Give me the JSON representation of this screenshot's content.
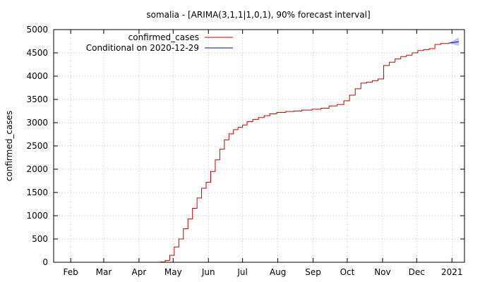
{
  "chart_data": {
    "type": "line",
    "title": "somalia -  [ARIMA(3,1,1|1,0,1), 90% forecast interval]",
    "xlabel": "",
    "ylabel": "confirmed_cases",
    "xlim": [
      "2020-01-17",
      "2021-01-12"
    ],
    "ylim": [
      0,
      5000
    ],
    "y_ticks": [
      0,
      500,
      1000,
      1500,
      2000,
      2500,
      3000,
      3500,
      4000,
      4500,
      5000
    ],
    "x_ticks": [
      {
        "label": "Feb",
        "date": "2020-02-01"
      },
      {
        "label": "Mar",
        "date": "2020-03-01"
      },
      {
        "label": "Apr",
        "date": "2020-04-01"
      },
      {
        "label": "May",
        "date": "2020-05-01"
      },
      {
        "label": "Jun",
        "date": "2020-06-01"
      },
      {
        "label": "Jul",
        "date": "2020-07-01"
      },
      {
        "label": "Aug",
        "date": "2020-08-01"
      },
      {
        "label": "Sep",
        "date": "2020-09-01"
      },
      {
        "label": "Oct",
        "date": "2020-10-01"
      },
      {
        "label": "Nov",
        "date": "2020-11-01"
      },
      {
        "label": "Dec",
        "date": "2020-12-01"
      },
      {
        "label": "2021",
        "date": "2021-01-01"
      }
    ],
    "grid": true,
    "legend_position": "top-left",
    "series": [
      {
        "name": "confirmed_cases",
        "color": "#cc0000",
        "points": [
          [
            "2020-04-16",
            0
          ],
          [
            "2020-04-20",
            5
          ],
          [
            "2020-04-24",
            40
          ],
          [
            "2020-04-28",
            150
          ],
          [
            "2020-05-02",
            330
          ],
          [
            "2020-05-06",
            500
          ],
          [
            "2020-05-10",
            720
          ],
          [
            "2020-05-14",
            930
          ],
          [
            "2020-05-18",
            1160
          ],
          [
            "2020-05-22",
            1380
          ],
          [
            "2020-05-26",
            1590
          ],
          [
            "2020-05-30",
            1720
          ],
          [
            "2020-06-03",
            1950
          ],
          [
            "2020-06-07",
            2200
          ],
          [
            "2020-06-11",
            2430
          ],
          [
            "2020-06-15",
            2630
          ],
          [
            "2020-06-19",
            2760
          ],
          [
            "2020-06-23",
            2850
          ],
          [
            "2020-06-27",
            2900
          ],
          [
            "2020-07-01",
            2950
          ],
          [
            "2020-07-05",
            3020
          ],
          [
            "2020-07-10",
            3070
          ],
          [
            "2020-07-15",
            3110
          ],
          [
            "2020-07-20",
            3150
          ],
          [
            "2020-07-25",
            3190
          ],
          [
            "2020-07-31",
            3220
          ],
          [
            "2020-08-08",
            3240
          ],
          [
            "2020-08-15",
            3250
          ],
          [
            "2020-08-22",
            3270
          ],
          [
            "2020-08-31",
            3290
          ],
          [
            "2020-09-08",
            3310
          ],
          [
            "2020-09-15",
            3360
          ],
          [
            "2020-09-22",
            3390
          ],
          [
            "2020-09-28",
            3470
          ],
          [
            "2020-10-03",
            3590
          ],
          [
            "2020-10-08",
            3730
          ],
          [
            "2020-10-13",
            3850
          ],
          [
            "2020-10-18",
            3870
          ],
          [
            "2020-10-23",
            3900
          ],
          [
            "2020-10-28",
            3940
          ],
          [
            "2020-11-02",
            4230
          ],
          [
            "2020-11-07",
            4300
          ],
          [
            "2020-11-12",
            4370
          ],
          [
            "2020-11-17",
            4420
          ],
          [
            "2020-11-22",
            4450
          ],
          [
            "2020-11-27",
            4500
          ],
          [
            "2020-12-02",
            4550
          ],
          [
            "2020-12-07",
            4570
          ],
          [
            "2020-12-12",
            4590
          ],
          [
            "2020-12-17",
            4680
          ],
          [
            "2020-12-22",
            4700
          ],
          [
            "2020-12-29",
            4710
          ]
        ]
      },
      {
        "name": "Conditional on 2020-12-29",
        "color": "#0000cc",
        "points": [
          [
            "2020-12-29",
            4710
          ],
          [
            "2021-01-01",
            4720
          ],
          [
            "2021-01-04",
            4730
          ],
          [
            "2021-01-07",
            4740
          ]
        ],
        "band": {
          "color": "#aab4e6",
          "lower": [
            4710,
            4690,
            4670,
            4650
          ],
          "upper": [
            4710,
            4750,
            4790,
            4830
          ]
        }
      }
    ]
  }
}
